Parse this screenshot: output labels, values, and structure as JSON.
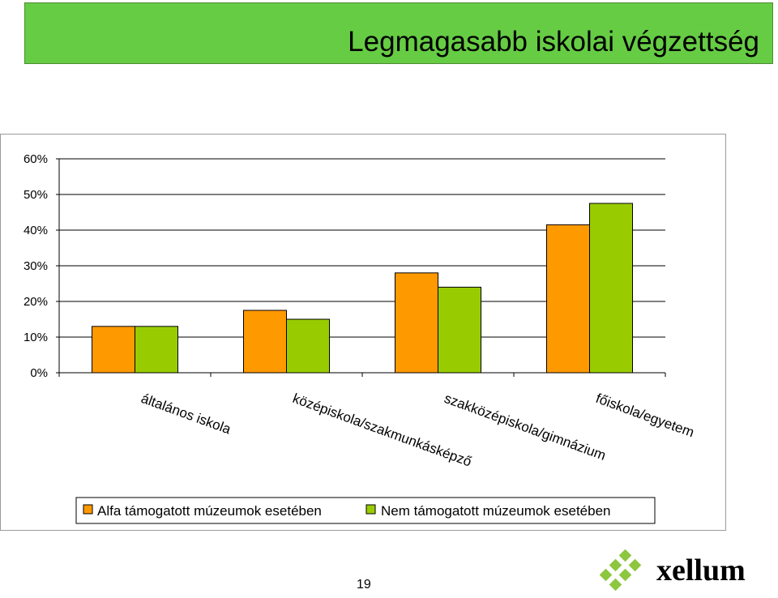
{
  "title": "Legmagasabb iskolai végzettség",
  "page_number": "19",
  "logo_text": "xellum",
  "colors": {
    "banner": "#66cc44",
    "series_alfa": "#ff9900",
    "series_nem": "#99cc00",
    "logo_green": "#8dc63f"
  },
  "chart_data": {
    "type": "bar",
    "categories": [
      "általános iskola",
      "középiskola/szakmunkásképző",
      "szakközépiskola/gimnázium",
      "főiskola/egyetem"
    ],
    "series": [
      {
        "name": "Alfa támogatott múzeumok esetében",
        "color": "#ff9900",
        "values": [
          13,
          17.5,
          28,
          41.5
        ]
      },
      {
        "name": "Nem támogatott múzeumok esetében",
        "color": "#99cc00",
        "values": [
          13,
          15,
          24,
          47.5
        ]
      }
    ],
    "yticks": [
      "0%",
      "10%",
      "20%",
      "30%",
      "40%",
      "50%",
      "60%"
    ],
    "ylim": [
      0,
      60
    ],
    "grid": true,
    "legend_position": "bottom"
  }
}
